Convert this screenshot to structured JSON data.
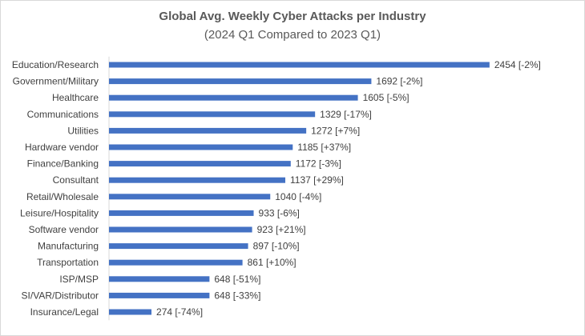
{
  "chart_data": {
    "type": "bar",
    "orientation": "horizontal",
    "title": "Global Avg. Weekly Cyber Attacks per Industry",
    "subtitle": "(2024 Q1 Compared to 2023 Q1)",
    "xlabel": "",
    "ylabel": "",
    "xlim": [
      0,
      2500
    ],
    "grid": false,
    "legend": "none",
    "bar_color": "#4472c4",
    "categories": [
      "Education/Research",
      "Government/Military",
      "Healthcare",
      "Communications",
      "Utilities",
      "Hardware vendor",
      "Finance/Banking",
      "Consultant",
      "Retail/Wholesale",
      "Leisure/Hospitality",
      "Software vendor",
      "Manufacturing",
      "Transportation",
      "ISP/MSP",
      "SI/VAR/Distributor",
      "Insurance/Legal"
    ],
    "values": [
      2454,
      1692,
      1605,
      1329,
      1272,
      1185,
      1172,
      1137,
      1040,
      933,
      923,
      897,
      861,
      648,
      648,
      274
    ],
    "data_labels": [
      "2454 [-2%]",
      "1692 [-2%]",
      "1605 [-5%]",
      "1329 [-17%]",
      "1272 [+7%]",
      "1185 [+37%]",
      "1172 [-3%]",
      "1137 [+29%]",
      "1040 [-4%]",
      "933 [-6%]",
      "923 [+21%]",
      "897 [-10%]",
      "861 [+10%]",
      "648 [-51%]",
      "648 [-33%]",
      "274 [-74%]"
    ]
  }
}
